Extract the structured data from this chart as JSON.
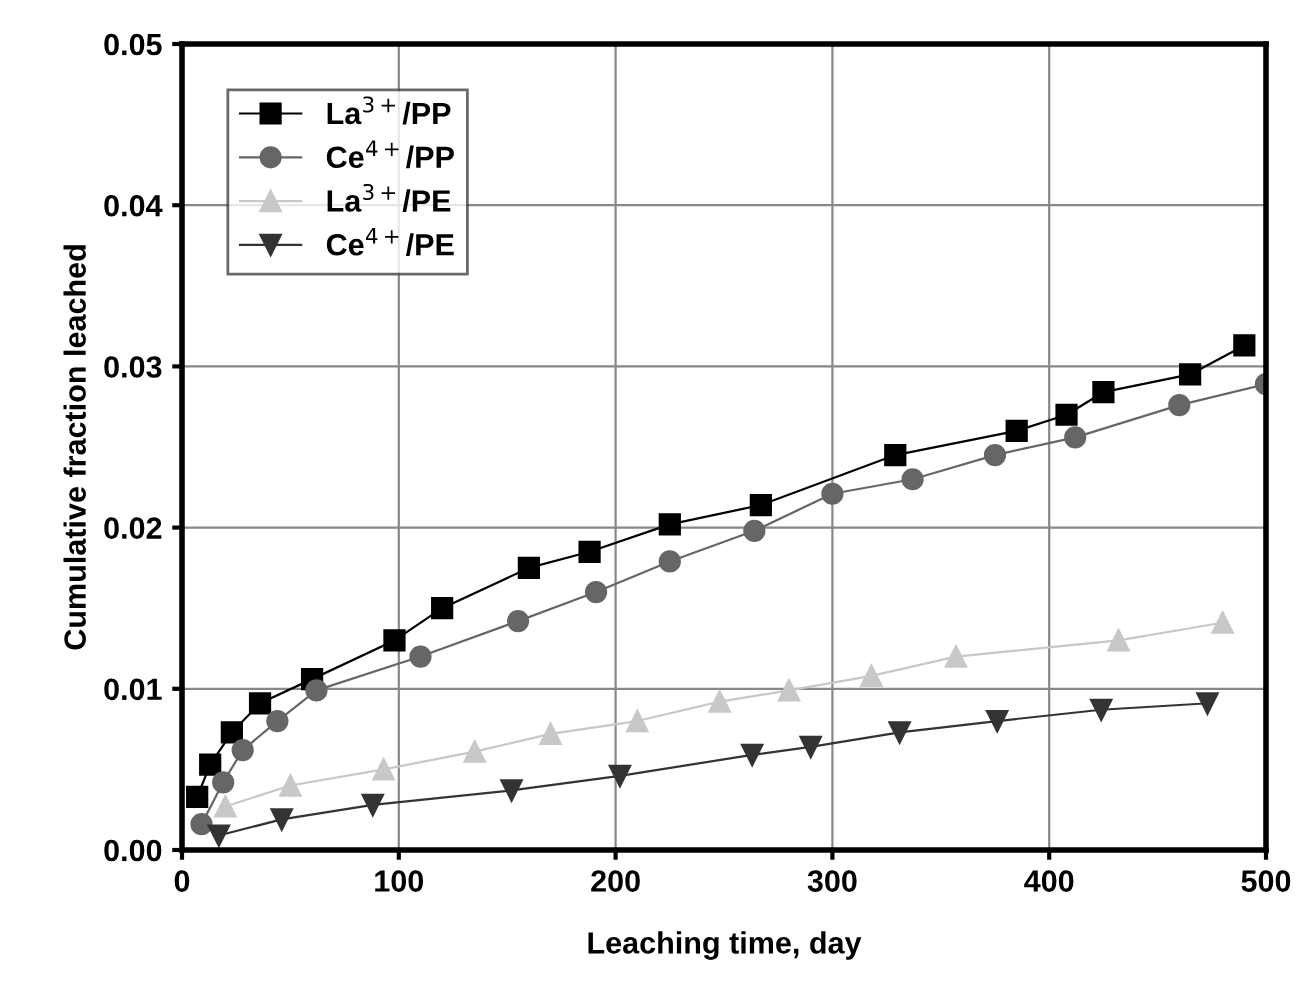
{
  "chart_data": {
    "type": "line",
    "xlabel": "Leaching time, day",
    "ylabel": "Cumulative fraction leached",
    "xlim": [
      0,
      500
    ],
    "ylim": [
      0,
      0.05
    ],
    "xticks": [
      0,
      100,
      200,
      300,
      400,
      500
    ],
    "yticks": [
      {
        "value": 0,
        "label": "0.00"
      },
      {
        "value": 0.01,
        "label": "0.01"
      },
      {
        "value": 0.02,
        "label": "0.02"
      },
      {
        "value": 0.03,
        "label": "0.03"
      },
      {
        "value": 0.04,
        "label": "0.04"
      },
      {
        "value": 0.05,
        "label": "0.05"
      }
    ],
    "grid": true,
    "legend": "top left",
    "series": [
      {
        "name": "La$^{3+}$/PP",
        "color": "#000000",
        "marker": "square",
        "x": [
          7,
          13,
          23,
          36,
          60,
          98,
          120,
          160,
          188,
          225,
          267,
          329,
          385,
          408,
          425,
          465,
          490
        ],
        "values": [
          0.0033,
          0.0053,
          0.0073,
          0.0091,
          0.0106,
          0.013,
          0.015,
          0.0175,
          0.0185,
          0.0202,
          0.0214,
          0.0245,
          0.026,
          0.027,
          0.0284,
          0.0295,
          0.0313
        ]
      },
      {
        "name": "Ce$^{4+}$/PP",
        "color": "#666666",
        "marker": "circle",
        "x": [
          9,
          19,
          28,
          44,
          62,
          110,
          155,
          191,
          225,
          264,
          300,
          337,
          375,
          412,
          460,
          500
        ],
        "values": [
          0.0016,
          0.0042,
          0.0062,
          0.008,
          0.0099,
          0.012,
          0.0142,
          0.016,
          0.0179,
          0.0198,
          0.0221,
          0.023,
          0.0245,
          0.0256,
          0.0276,
          0.0289
        ]
      },
      {
        "name": "La$^{3+}$/PE",
        "color": "#c8c8c8",
        "marker": "triangle",
        "x": [
          20,
          50,
          93,
          135,
          170,
          210,
          248,
          280,
          318,
          357,
          432,
          480
        ],
        "values": [
          0.0027,
          0.004,
          0.005,
          0.0061,
          0.0072,
          0.008,
          0.0092,
          0.0099,
          0.0108,
          0.012,
          0.013,
          0.0141
        ]
      },
      {
        "name": "Ce$^{4+}$/PE",
        "color": "#333333",
        "marker": "triangle_down",
        "x": [
          17,
          46,
          88,
          152,
          202,
          263,
          290,
          331,
          376,
          424,
          473
        ],
        "values": [
          0.0009,
          0.0019,
          0.0028,
          0.0037,
          0.0046,
          0.0059,
          0.0064,
          0.0073,
          0.008,
          0.0087,
          0.0091
        ]
      }
    ]
  }
}
